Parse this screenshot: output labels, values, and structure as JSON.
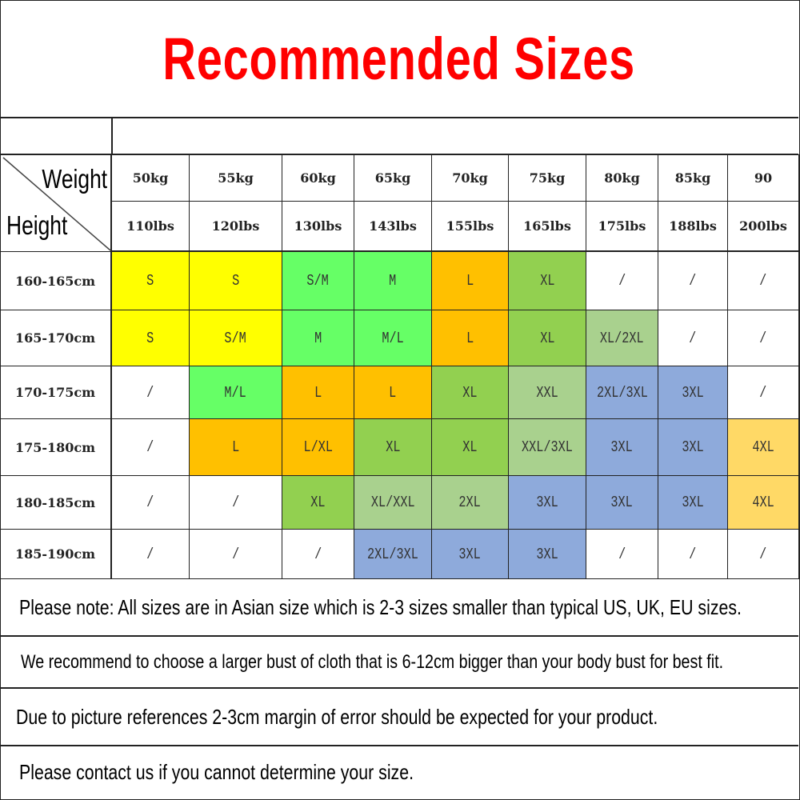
{
  "title": "Recommended Sizes",
  "table": {
    "corner": {
      "top_label": "Weight",
      "bottom_label": "Height"
    },
    "weights_kg": [
      "50kg",
      "55kg",
      "60kg",
      "65kg",
      "70kg",
      "75kg",
      "80kg",
      "85kg",
      "90"
    ],
    "weights_lbs": [
      "110lbs",
      "120lbs",
      "130lbs",
      "143lbs",
      "155lbs",
      "165lbs",
      "175lbs",
      "188lbs",
      "200lbs"
    ],
    "rows": [
      {
        "height": "160-165cm",
        "sizes": [
          "S",
          "S",
          "S/M",
          "M",
          "L",
          "XL",
          "/",
          "/",
          "/"
        ],
        "colors": [
          "Y",
          "Y",
          "G",
          "G",
          "O",
          "M",
          "W",
          "W",
          "W"
        ]
      },
      {
        "height": "165-170cm",
        "sizes": [
          "S",
          "S/M",
          "M",
          "M/L",
          "L",
          "XL",
          "XL/2XL",
          "/",
          "/"
        ],
        "colors": [
          "Y",
          "Y",
          "G",
          "G",
          "O",
          "M",
          "LG",
          "W",
          "W"
        ]
      },
      {
        "height": "170-175cm",
        "sizes": [
          "/",
          "M/L",
          "L",
          "L",
          "XL",
          "XXL",
          "2XL/3XL",
          "3XL",
          "/"
        ],
        "colors": [
          "W",
          "G",
          "O",
          "O",
          "M",
          "LG",
          "B",
          "B",
          "W"
        ]
      },
      {
        "height": "175-180cm",
        "sizes": [
          "/",
          "L",
          "L/XL",
          "XL",
          "XL",
          "XXL/3XL",
          "3XL",
          "3XL",
          "4XL"
        ],
        "colors": [
          "W",
          "O",
          "O",
          "M",
          "M",
          "LG",
          "B",
          "B",
          "LO"
        ]
      },
      {
        "height": "180-185cm",
        "sizes": [
          "/",
          "/",
          "XL",
          "XL/XXL",
          "2XL",
          "3XL",
          "3XL",
          "3XL",
          "4XL"
        ],
        "colors": [
          "W",
          "W",
          "M",
          "LG",
          "LG",
          "B",
          "B",
          "B",
          "LO"
        ]
      },
      {
        "height": "185-190cm",
        "sizes": [
          "/",
          "/",
          "/",
          "2XL/3XL",
          "3XL",
          "3XL",
          "/",
          "/",
          "/"
        ],
        "colors": [
          "W",
          "W",
          "W",
          "B",
          "B",
          "B",
          "W",
          "W",
          "W"
        ]
      }
    ],
    "palette": {
      "Y": "#ffff00",
      "G": "#66ff66",
      "O": "#ffc000",
      "M": "#92d050",
      "LG": "#a9d18e",
      "B": "#8eaadb",
      "LO": "#ffd966",
      "W": "#ffffff"
    }
  },
  "notes": [
    "Please note: All sizes are in Asian size which is 2-3 sizes smaller than typical US, UK, EU sizes.",
    "We recommend to choose a larger bust of cloth that is 6-12cm bigger than your body bust for best fit.",
    "Due to picture references 2-3cm margin of error should be expected for your product.",
    "Please contact us if you cannot determine your size."
  ],
  "title_color": "#ff0000"
}
